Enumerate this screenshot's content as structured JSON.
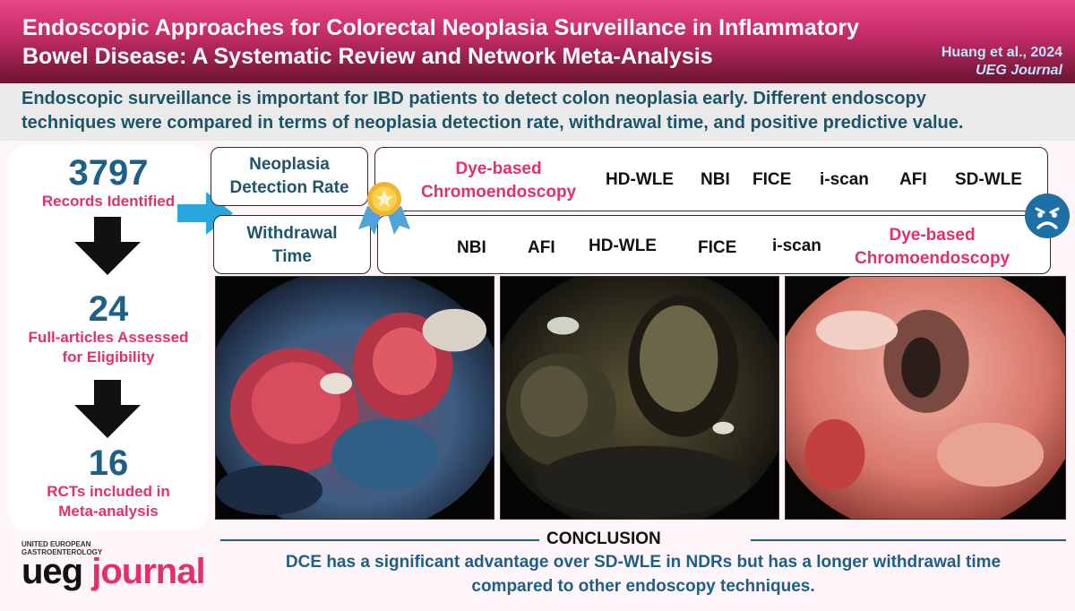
{
  "header": {
    "title_line1": "Endoscopic Approaches for Colorectal Neoplasia Surveillance in Inflammatory",
    "title_line2": "Bowel Disease: A Systematic Review and Network Meta-Analysis",
    "citation_author": "Huang et al., 2024",
    "citation_journal": "UEG Journal"
  },
  "intro": {
    "line1": "Endoscopic surveillance is important for IBD patients to detect colon neoplasia early. Different endoscopy",
    "line2": "techniques were compared in terms of neoplasia detection rate, withdrawal time, and positive predictive value."
  },
  "flow": {
    "step1": {
      "number": "3797",
      "label": "Records Identified"
    },
    "step2": {
      "number": "24",
      "label_line1": "Full-articles Assessed",
      "label_line2": "for Eligibility"
    },
    "step3": {
      "number": "16",
      "label_line1": "RCTs included in",
      "label_line2": "Meta-analysis"
    }
  },
  "ndr": {
    "label_line1": "Neoplasia",
    "label_line2": "Detection Rate",
    "ranking": [
      {
        "line1": "Dye-based",
        "line2": "Chromoendoscopy"
      },
      {
        "line1": "HD-WLE"
      },
      {
        "line1": "NBI"
      },
      {
        "line1": "FICE"
      },
      {
        "line1": "i-scan"
      },
      {
        "line1": "AFI"
      },
      {
        "line1": "SD-WLE"
      }
    ]
  },
  "withdrawal": {
    "label_line1": "Withdrawal",
    "label_line2": "Time",
    "ranking": [
      {
        "line1": "NBI"
      },
      {
        "line1": "AFI"
      },
      {
        "line1": "HD-WLE"
      },
      {
        "line1": "FICE"
      },
      {
        "line1": "i-scan"
      },
      {
        "line1": "Dye-based",
        "line2": "Chromoendoscopy"
      }
    ]
  },
  "icons": {
    "best": "award-ribbon-icon",
    "worst": "sad-face-icon",
    "pointer": "right-arrow-icon"
  },
  "colors": {
    "accent_pink": "#e1306c",
    "accent_blue": "#1e5f86",
    "header_dark": "#6a1530",
    "arrow_blue": "#29a8e0"
  },
  "conclusion": {
    "title": "CONCLUSION",
    "line1": "DCE has a significant advantage over SD-WLE in NDRs but has a longer withdrawal time",
    "line2": "compared to other endoscopy techniques."
  },
  "logo": {
    "small_line1": "UNITED EUROPEAN",
    "small_line2": "GASTROENTEROLOGY",
    "word_ueg": "ueg",
    "word_journal": "journal"
  }
}
